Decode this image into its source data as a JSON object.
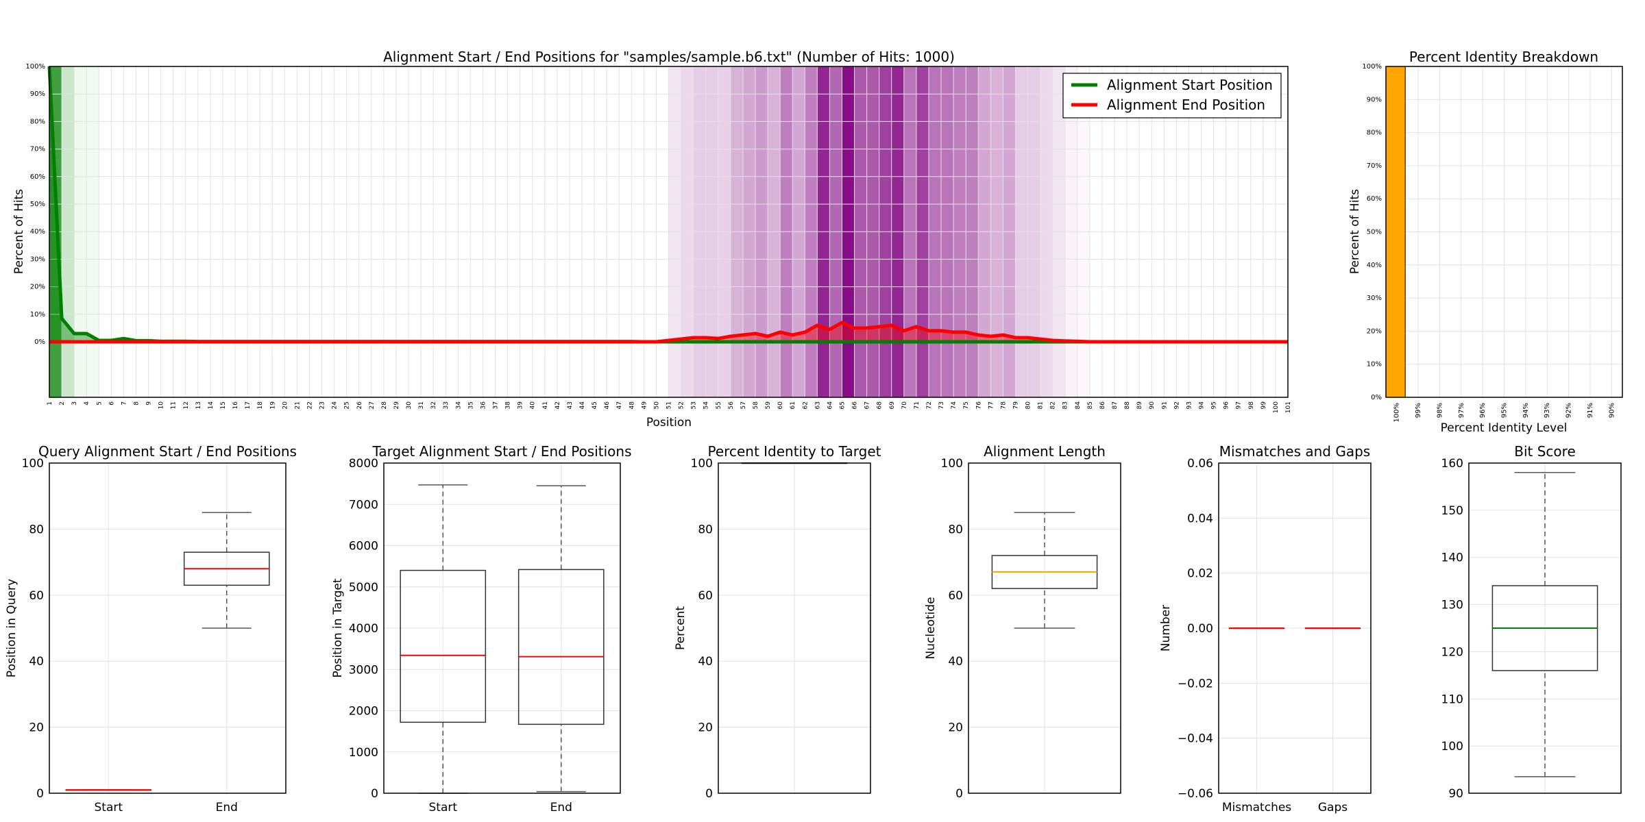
{
  "chart_data": [
    {
      "type": "line",
      "title": "Alignment Start / End Positions for \"samples/sample.b6.txt\" (Number of Hits: 1000)",
      "xlabel": "Position",
      "ylabel": "Percent of Hits",
      "x_range": [
        1,
        101
      ],
      "ylim": [
        0,
        100
      ],
      "yticks": [
        "0%",
        "10%",
        "20%",
        "30%",
        "40%",
        "50%",
        "60%",
        "70%",
        "80%",
        "90%",
        "100%"
      ],
      "grid": true,
      "legend_position": "top-right",
      "series": [
        {
          "name": "Alignment Start Position",
          "color": "#008000",
          "values": [
            100,
            8.5,
            3,
            3,
            0.5,
            0.5,
            1.2,
            0.4,
            0.4,
            0.2,
            0.2,
            0.2,
            0.1,
            0.1,
            0.1,
            0.1,
            0.1,
            0.1,
            0.1,
            0.1,
            0.1,
            0.1,
            0.1,
            0.1,
            0.1,
            0.1,
            0.1,
            0.1,
            0.1,
            0.1,
            0.1,
            0.1,
            0.1,
            0.1,
            0.1,
            0.1,
            0.1,
            0.1,
            0.1,
            0.1,
            0.1,
            0.1,
            0.1,
            0.1,
            0.1,
            0.1,
            0.1,
            0.1,
            0,
            0,
            0,
            0,
            0,
            0,
            0,
            0,
            0,
            0,
            0,
            0,
            0,
            0,
            0,
            0,
            0,
            0,
            0,
            0,
            0,
            0,
            0,
            0,
            0,
            0,
            0,
            0,
            0,
            0,
            0,
            0,
            0,
            0,
            0,
            0,
            0,
            0,
            0,
            0,
            0,
            0,
            0,
            0,
            0,
            0,
            0,
            0,
            0,
            0,
            0,
            0,
            0
          ]
        },
        {
          "name": "Alignment End Position",
          "color": "#ff0000",
          "values": [
            0,
            0,
            0,
            0,
            0,
            0,
            0,
            0,
            0,
            0,
            0,
            0,
            0,
            0,
            0,
            0,
            0,
            0,
            0,
            0,
            0,
            0,
            0,
            0,
            0,
            0,
            0,
            0,
            0,
            0,
            0,
            0,
            0,
            0,
            0,
            0,
            0,
            0,
            0,
            0,
            0,
            0,
            0,
            0,
            0,
            0,
            0,
            0,
            0,
            0,
            0.5,
            1,
            1.5,
            1.5,
            1.2,
            2,
            2.5,
            3,
            2,
            3.5,
            2.5,
            3.5,
            6,
            4.5,
            7,
            5,
            5,
            5.5,
            6,
            4,
            5.5,
            4,
            4,
            3.5,
            3.5,
            2.5,
            2,
            2.5,
            1.5,
            1.5,
            1,
            0.5,
            0.3,
            0.2,
            0,
            0,
            0,
            0,
            0,
            0,
            0,
            0,
            0,
            0,
            0,
            0,
            0,
            0,
            0,
            0,
            0
          ]
        }
      ],
      "start_heat_opacity": [
        0.75,
        0.2,
        0.06,
        0.05,
        0,
        0,
        0,
        0,
        0,
        0,
        0,
        0,
        0,
        0,
        0,
        0,
        0,
        0,
        0,
        0,
        0,
        0,
        0,
        0,
        0,
        0,
        0,
        0,
        0,
        0,
        0,
        0,
        0,
        0,
        0,
        0,
        0,
        0,
        0,
        0,
        0,
        0,
        0,
        0,
        0,
        0,
        0,
        0,
        0,
        0,
        0,
        0,
        0,
        0,
        0,
        0,
        0,
        0,
        0,
        0,
        0,
        0,
        0,
        0,
        0,
        0,
        0,
        0,
        0,
        0,
        0,
        0,
        0,
        0,
        0,
        0,
        0,
        0,
        0,
        0,
        0,
        0,
        0,
        0,
        0,
        0,
        0,
        0,
        0,
        0,
        0,
        0,
        0,
        0,
        0,
        0,
        0,
        0,
        0,
        0,
        0
      ],
      "end_heat_opacity": [
        0,
        0,
        0,
        0,
        0,
        0,
        0,
        0,
        0,
        0,
        0,
        0,
        0,
        0,
        0,
        0,
        0,
        0,
        0,
        0,
        0,
        0,
        0,
        0,
        0,
        0,
        0,
        0,
        0,
        0,
        0,
        0,
        0,
        0,
        0,
        0,
        0,
        0,
        0,
        0,
        0,
        0,
        0,
        0,
        0,
        0,
        0,
        0,
        0,
        0,
        0.1,
        0.15,
        0.2,
        0.2,
        0.18,
        0.3,
        0.35,
        0.4,
        0.3,
        0.5,
        0.35,
        0.5,
        0.85,
        0.6,
        0.95,
        0.65,
        0.65,
        0.75,
        0.85,
        0.55,
        0.75,
        0.55,
        0.55,
        0.5,
        0.5,
        0.35,
        0.3,
        0.35,
        0.2,
        0.2,
        0.15,
        0.1,
        0.05,
        0.03,
        0,
        0,
        0,
        0,
        0,
        0,
        0,
        0,
        0,
        0,
        0,
        0,
        0,
        0,
        0,
        0,
        0
      ]
    },
    {
      "type": "bar",
      "title": "Percent Identity Breakdown",
      "xlabel": "Percent Identity Level",
      "ylabel": "Percent of Hits",
      "categories": [
        "100%",
        "99%",
        "98%",
        "97%",
        "96%",
        "95%",
        "94%",
        "93%",
        "92%",
        "91%",
        "90%"
      ],
      "values": [
        100,
        0,
        0,
        0,
        0,
        0,
        0,
        0,
        0,
        0,
        0
      ],
      "ylim": [
        0,
        100
      ],
      "yticks": [
        "0%",
        "10%",
        "20%",
        "30%",
        "40%",
        "50%",
        "60%",
        "70%",
        "80%",
        "90%",
        "100%"
      ],
      "color": "#ffa500",
      "grid": true
    },
    {
      "type": "boxplot",
      "title": "Query Alignment Start / End Positions",
      "ylabel": "Position in Query",
      "ylim": [
        0,
        100
      ],
      "yticks": [
        "0",
        "20",
        "40",
        "60",
        "80",
        "100"
      ],
      "median_color": "#ff0000",
      "boxes": [
        {
          "label": "Start",
          "whisker_low": 1,
          "q1": 1,
          "median": 1,
          "q3": 1,
          "whisker_high": 1
        },
        {
          "label": "End",
          "whisker_low": 50,
          "q1": 63,
          "median": 68,
          "q3": 73,
          "whisker_high": 85
        }
      ]
    },
    {
      "type": "boxplot",
      "title": "Target Alignment Start / End Positions",
      "ylabel": "Position in Target",
      "ylim": [
        0,
        8000
      ],
      "yticks": [
        "0",
        "1000",
        "2000",
        "3000",
        "4000",
        "5000",
        "6000",
        "7000",
        "8000"
      ],
      "median_color": "#ff0000",
      "boxes": [
        {
          "label": "Start",
          "whisker_low": 0,
          "q1": 1720,
          "median": 3340,
          "q3": 5400,
          "whisker_high": 7470
        },
        {
          "label": "End",
          "whisker_low": 40,
          "q1": 1670,
          "median": 3310,
          "q3": 5420,
          "whisker_high": 7450
        }
      ]
    },
    {
      "type": "boxplot",
      "title": "Percent Identity to Target",
      "ylabel": "Percent",
      "ylim": [
        0,
        100
      ],
      "yticks": [
        "0",
        "20",
        "40",
        "60",
        "80",
        "100"
      ],
      "median_color": "#800080",
      "boxes": [
        {
          "label": "",
          "whisker_low": 100,
          "q1": 100,
          "median": 100,
          "q3": 100,
          "whisker_high": 100
        }
      ]
    },
    {
      "type": "boxplot",
      "title": "Alignment Length",
      "ylabel": "Nucleotide",
      "ylim": [
        0,
        100
      ],
      "yticks": [
        "0",
        "20",
        "40",
        "60",
        "80",
        "100"
      ],
      "median_color": "#ffa500",
      "boxes": [
        {
          "label": "",
          "whisker_low": 50,
          "q1": 62,
          "median": 67,
          "q3": 72,
          "whisker_high": 85
        }
      ]
    },
    {
      "type": "boxplot",
      "title": "Mismatches and Gaps",
      "ylabel": "Number",
      "ylim": [
        -0.06,
        0.06
      ],
      "yticks": [
        "−0.06",
        "−0.04",
        "−0.02",
        "0.00",
        "0.02",
        "0.04",
        "0.06"
      ],
      "median_color": "#ff0000",
      "boxes": [
        {
          "label": "Mismatches",
          "whisker_low": 0,
          "q1": 0,
          "median": 0,
          "q3": 0,
          "whisker_high": 0
        },
        {
          "label": "Gaps",
          "whisker_low": 0,
          "q1": 0,
          "median": 0,
          "q3": 0,
          "whisker_high": 0
        }
      ]
    },
    {
      "type": "boxplot",
      "title": "Bit Score",
      "ylabel": "",
      "ylim": [
        90,
        160
      ],
      "yticks": [
        "90",
        "100",
        "110",
        "120",
        "130",
        "140",
        "150",
        "160"
      ],
      "median_color": "#008000",
      "boxes": [
        {
          "label": "",
          "whisker_low": 93.5,
          "q1": 116,
          "median": 125,
          "q3": 134,
          "whisker_high": 158
        }
      ]
    }
  ]
}
